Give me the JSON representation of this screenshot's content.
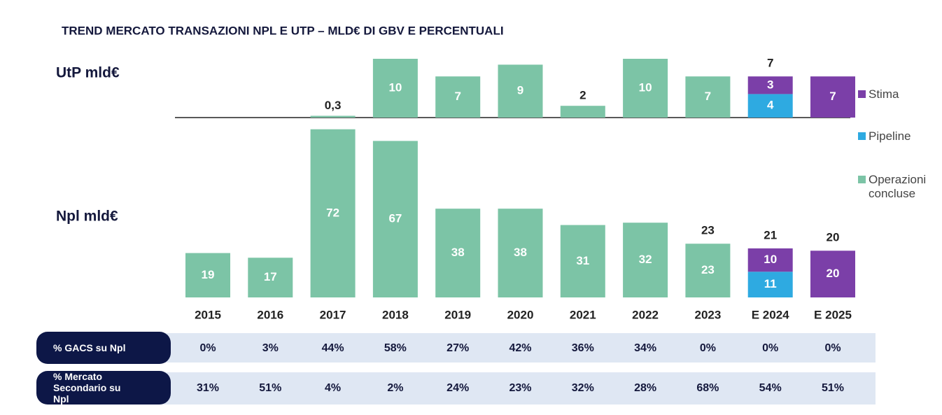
{
  "chart_data": {
    "type": "bar",
    "title": "TREND MERCATO TRANSAZIONI NPL E UTP – MLD€ DI GBV E PERCENTUALI",
    "categories": [
      "2015",
      "2016",
      "2017",
      "2018",
      "2019",
      "2020",
      "2021",
      "2022",
      "2023",
      "E 2024",
      "E 2025"
    ],
    "series": [
      {
        "name": "Stima",
        "color": "#7b3fa8"
      },
      {
        "name": "Pipeline",
        "color": "#2eaae1"
      },
      {
        "name": "Operazioni concluse",
        "color": "#7cc4a6"
      }
    ],
    "panels": [
      {
        "label": "UtP mld€",
        "ylim": [
          0,
          10
        ],
        "series": [
          {
            "values": [
              null,
              null,
              null,
              null,
              null,
              null,
              null,
              null,
              null,
              3,
              7
            ]
          },
          {
            "values": [
              null,
              null,
              null,
              null,
              null,
              null,
              null,
              null,
              null,
              4,
              null
            ]
          },
          {
            "values": [
              null,
              null,
              0.3,
              10,
              7,
              9,
              2,
              10,
              7,
              null,
              null
            ],
            "value_labels": [
              null,
              null,
              "0,3",
              "10",
              "7",
              "9",
              "2",
              "10",
              "7",
              null,
              null
            ]
          }
        ],
        "totals": [
          null,
          null,
          null,
          null,
          null,
          null,
          null,
          null,
          null,
          7,
          null
        ]
      },
      {
        "label": "Npl mld€",
        "ylim": [
          0,
          80
        ],
        "series": [
          {
            "values": [
              null,
              null,
              null,
              null,
              null,
              null,
              null,
              null,
              null,
              10,
              20
            ]
          },
          {
            "values": [
              null,
              null,
              null,
              null,
              null,
              null,
              null,
              null,
              null,
              11,
              null
            ]
          },
          {
            "values": [
              19,
              17,
              72,
              67,
              38,
              38,
              31,
              32,
              23,
              null,
              null
            ]
          }
        ],
        "totals": [
          null,
          null,
          null,
          null,
          null,
          null,
          null,
          null,
          23,
          21,
          20
        ]
      }
    ],
    "rows": [
      {
        "label": "% GACS su Npl",
        "values": [
          "0%",
          "3%",
          "44%",
          "58%",
          "27%",
          "42%",
          "36%",
          "34%",
          "0%",
          "0%",
          "0%"
        ]
      },
      {
        "label": "% Mercato Secondario su Npl",
        "values": [
          "31%",
          "51%",
          "4%",
          "2%",
          "24%",
          "23%",
          "32%",
          "28%",
          "68%",
          "54%",
          "51%"
        ]
      }
    ]
  }
}
